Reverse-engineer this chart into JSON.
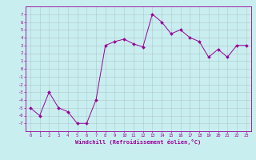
{
  "x": [
    0,
    1,
    2,
    3,
    4,
    5,
    6,
    7,
    8,
    9,
    10,
    11,
    12,
    13,
    14,
    15,
    16,
    17,
    18,
    19,
    20,
    21,
    22,
    23
  ],
  "y": [
    -5,
    -6,
    -3,
    -5,
    -5.5,
    -7,
    -7,
    -4,
    3,
    3.5,
    3.8,
    3.2,
    2.8,
    7,
    6,
    4.5,
    5,
    4,
    3.5,
    1.5,
    2.5,
    1.5,
    3,
    3
  ],
  "xlabel": "Windchill (Refroidissement éolien,°C)",
  "line_color": "#990099",
  "marker_color": "#990099",
  "bg_color": "#c8eef0",
  "grid_color": "#b0c8c8",
  "xlim": [
    -0.5,
    23.5
  ],
  "ylim": [
    -8,
    8
  ],
  "yticks": [
    -7,
    -6,
    -5,
    -4,
    -3,
    -2,
    -1,
    0,
    1,
    2,
    3,
    4,
    5,
    6,
    7
  ],
  "xtick_labels": [
    "0",
    "1",
    "2",
    "3",
    "4",
    "5",
    "6",
    "7",
    "8",
    "9",
    "10",
    "11",
    "12",
    "13",
    "14",
    "15",
    "16",
    "17",
    "18",
    "19",
    "20",
    "21",
    "22",
    "23"
  ],
  "axis_color": "#990099",
  "tick_color": "#990099"
}
